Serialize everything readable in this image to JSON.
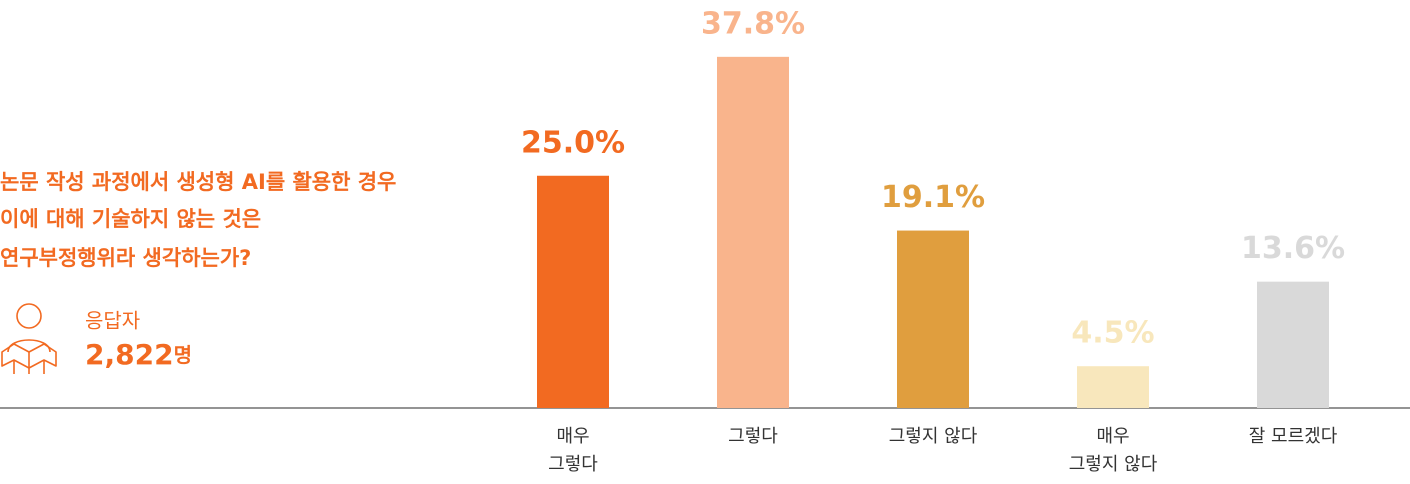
{
  "question": [
    "논문 작성 과정에서 생성형 AI를 활용한 경우",
    "이에 대해 기술하지 않는 것은",
    "연구부정행위라 생각하는가?"
  ],
  "respondents": {
    "label": "응답자",
    "count": "2,822",
    "unit": "명"
  },
  "chart_data": {
    "type": "bar",
    "categories": [
      [
        "매우",
        "그렇다"
      ],
      [
        "그렇다"
      ],
      [
        "그렇지 않다"
      ],
      [
        "매우",
        "그렇지 않다"
      ],
      [
        "잘 모르겠다"
      ]
    ],
    "values": [
      25.0,
      37.8,
      19.1,
      4.5,
      13.6
    ],
    "value_labels": [
      "25.0%",
      "37.8%",
      "19.1%",
      "4.5%",
      "13.6%"
    ],
    "colors": [
      "#f26a21",
      "#f9b48c",
      "#e09e3e",
      "#f8e7bc",
      "#d9d9d9"
    ]
  }
}
